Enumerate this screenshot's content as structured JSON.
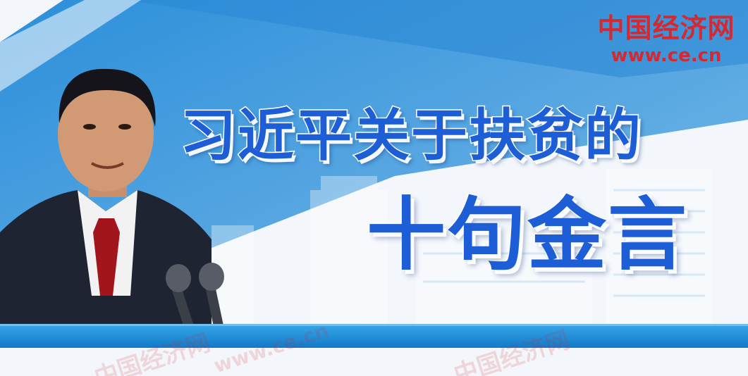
{
  "logo": {
    "name": "中国经济网",
    "url": "www.ce.cn"
  },
  "title": {
    "line1": "习近平关于扶贫的",
    "line2": "十句金言"
  },
  "watermarks": {
    "left": "中国经济网",
    "middle": "www.ce.cn",
    "right": "中国经济网"
  },
  "colors": {
    "title_blue": "#1d5ed6",
    "logo_red": "#d6282e",
    "band_blue": "#1c8fd8",
    "sky_blue": "#6fb0e2"
  }
}
